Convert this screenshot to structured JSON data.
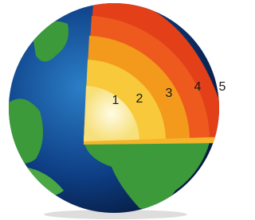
{
  "labels": [
    "1",
    "2",
    "3",
    "4",
    "5"
  ]
}
